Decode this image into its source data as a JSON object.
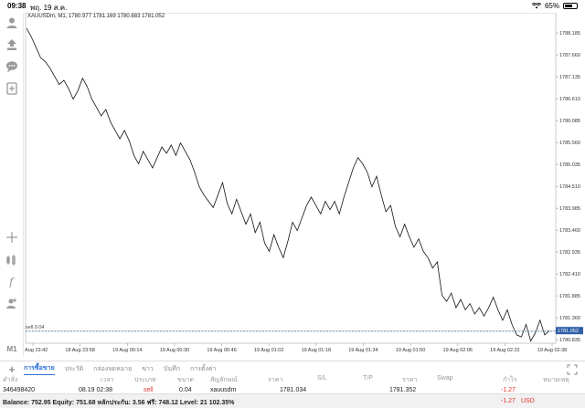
{
  "status_bar": {
    "time": "09:38",
    "date": "พฤ. 19 ส.ค.",
    "battery": "65%",
    "battery_level": 0.65
  },
  "chart": {
    "symbol_info": "XAUUSDm, M1, 1780.977 1781.169 1780.883 1781.052",
    "price_labels": [
      "1788.185",
      "1787.660",
      "1787.135",
      "1786.610",
      "1786.085",
      "1785.560",
      "1785.035",
      "1784.510",
      "1783.985",
      "1783.460",
      "1782.935",
      "1782.410",
      "1781.885",
      "1781.360",
      "1780.835"
    ],
    "time_labels": [
      "18 Aug 23:42",
      "18 Aug 23:58",
      "19 Aug 00:14",
      "19 Aug 00:30",
      "19 Aug 00:46",
      "19 Aug 01:02",
      "19 Aug 01:18",
      "19 Aug 01:34",
      "19 Aug 01:50",
      "19 Aug 02:06",
      "19 Aug 02:22",
      "19 Aug 02:38"
    ],
    "current_price": "1781.052",
    "current_price_value": 1781.052,
    "sell_line_label": "sell 0.04",
    "sell_line_value": 1781.034,
    "y_range": [
      1780.75,
      1788.45
    ],
    "price_series": [
      1788.3,
      1788.1,
      1787.85,
      1787.6,
      1787.5,
      1787.35,
      1787.15,
      1786.95,
      1787.05,
      1786.85,
      1786.6,
      1786.8,
      1787.1,
      1786.9,
      1786.6,
      1786.4,
      1786.2,
      1786.35,
      1786.05,
      1785.85,
      1785.65,
      1785.85,
      1785.6,
      1785.25,
      1785.05,
      1785.35,
      1785.15,
      1784.95,
      1785.2,
      1785.45,
      1785.3,
      1785.5,
      1785.25,
      1785.55,
      1785.35,
      1785.15,
      1784.85,
      1784.5,
      1784.3,
      1784.15,
      1784.0,
      1784.3,
      1784.6,
      1784.1,
      1783.85,
      1784.2,
      1783.9,
      1783.6,
      1783.85,
      1783.4,
      1783.65,
      1783.15,
      1782.95,
      1783.35,
      1783.05,
      1782.8,
      1783.2,
      1783.65,
      1783.45,
      1783.75,
      1784.05,
      1784.25,
      1784.05,
      1783.85,
      1784.15,
      1783.95,
      1784.15,
      1783.85,
      1784.25,
      1784.6,
      1784.95,
      1785.2,
      1785.05,
      1784.85,
      1784.5,
      1784.75,
      1784.3,
      1783.9,
      1784.05,
      1783.55,
      1783.3,
      1783.6,
      1783.3,
      1783.05,
      1783.25,
      1782.95,
      1782.8,
      1782.55,
      1782.7,
      1781.9,
      1781.75,
      1781.95,
      1781.6,
      1781.8,
      1781.55,
      1781.7,
      1781.45,
      1781.6,
      1781.4,
      1781.6,
      1781.85,
      1781.55,
      1781.3,
      1781.55,
      1781.2,
      1780.95,
      1780.9,
      1781.2,
      1780.8,
      1781.0,
      1781.3,
      1780.95,
      1781.05
    ]
  },
  "left_toolbar": {
    "icons": [
      "account-icon",
      "trade-icon",
      "chat-icon",
      "new-order-icon",
      "crosshair-icon",
      "indicators-icon",
      "function-icon",
      "objects-icon"
    ],
    "timeframe": "M1"
  },
  "bottom_tabs": {
    "plus": "+",
    "tabs": [
      "การซื้อขาย",
      "ประวัติ",
      "กล่องจดหมาย",
      "ข่าว",
      "บันทึก",
      "การตั้งค่า"
    ],
    "active_index": 0
  },
  "table": {
    "headers": [
      "คำสั่ง",
      "เวลา",
      "ประเภท",
      "ขนาด",
      "สัญลักษณ์",
      "ราคา",
      "S/L",
      "T/P",
      "ราคา",
      "Swap",
      "กำไร",
      "หมายเหตุ"
    ],
    "rows": [
      {
        "order": "346498420",
        "time": "08.19 02:38",
        "type": "sell",
        "size": "0.04",
        "symbol": "xauusdm",
        "price": "1781.034",
        "sl": "",
        "tp": "",
        "current_price": "1781.352",
        "swap": "",
        "profit": "-1.27",
        "comment": ""
      }
    ]
  },
  "footer": {
    "balance_text": "Balance: 752.95 Equity: 751.68 หลักประกัน: 3.56 ฟรี: 748.12 Level: 21 102.35%",
    "profit": "-1.27",
    "currency": "USD"
  },
  "colors": {
    "accent": "#2f6fd6",
    "loss": "#e0342d",
    "current_price_bg": "#2f5fa8",
    "sell_line": "#4a8fb5",
    "grid": "#d6d6d6"
  }
}
